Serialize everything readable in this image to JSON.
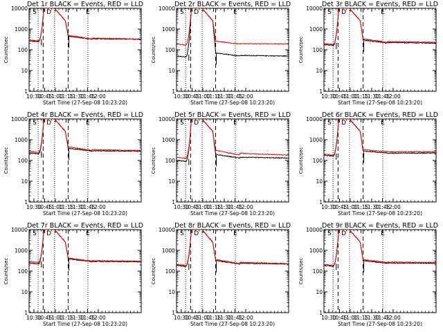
{
  "chart_data": {
    "type": "line",
    "y_scale": "log",
    "ylim": [
      1,
      10000
    ],
    "y_ticks": [
      1,
      10,
      100,
      1000,
      10000
    ],
    "y_tick_labels": [
      "1",
      "10",
      "100",
      "1000",
      "10000"
    ],
    "ylabel": "Counts/sec",
    "xlabel": "Start Time (27-Sep-08 10:23:20)",
    "xlim_minutes": [
      23.3,
      180
    ],
    "x_ticks_minutes": [
      30,
      45,
      60,
      75,
      90,
      105,
      120
    ],
    "x_tick_labels": [
      "10:30",
      "10:45",
      "11:00",
      "11:15",
      "11:30",
      "11:45",
      "12:00"
    ],
    "dotted_lines_minutes": [
      36,
      59,
      105.5
    ],
    "dashed_lines_minutes": [
      43,
      78
    ],
    "markers": [
      {
        "label": "S",
        "x_minutes": 31
      },
      {
        "label": "D",
        "x_minutes": 51
      },
      {
        "label": "E",
        "x_minutes": 105.5
      }
    ],
    "series_colors": {
      "events": "#000000",
      "lld": "#ff0000"
    },
    "panels": [
      {
        "title": "Det 1r BLACK = Events, RED = LLD",
        "base_events": 270,
        "base_lld": 300,
        "post_events": 350,
        "post_lld": 380,
        "end_events": 320,
        "end_lld": 330
      },
      {
        "title": "Det 2r BLACK = Events, RED = LLD",
        "base_events": 50,
        "base_lld": 190,
        "post_events": 55,
        "post_lld": 200,
        "end_events": 50,
        "end_lld": 190
      },
      {
        "title": "Det 3r BLACK = Events, RED = LLD",
        "base_events": 180,
        "base_lld": 200,
        "post_events": 230,
        "post_lld": 260,
        "end_events": 210,
        "end_lld": 230
      },
      {
        "title": "Det 4r BLACK = Events, RED = LLD",
        "base_events": 230,
        "base_lld": 270,
        "post_events": 300,
        "post_lld": 350,
        "end_events": 280,
        "end_lld": 300
      },
      {
        "title": "Det 5r BLACK = Events, RED = LLD",
        "base_events": 100,
        "base_lld": 140,
        "post_events": 150,
        "post_lld": 240,
        "end_events": 130,
        "end_lld": 180
      },
      {
        "title": "Det 6r BLACK = Events, RED = LLD",
        "base_events": 180,
        "base_lld": 200,
        "post_events": 220,
        "post_lld": 260,
        "end_events": 230,
        "end_lld": 260
      },
      {
        "title": "Det 7r BLACK = Events, RED = LLD",
        "base_events": 250,
        "base_lld": 290,
        "post_events": 300,
        "post_lld": 330,
        "end_events": 280,
        "end_lld": 300
      },
      {
        "title": "Det 8r BLACK = Events, RED = LLD",
        "base_events": 190,
        "base_lld": 210,
        "post_events": 250,
        "post_lld": 280,
        "end_events": 220,
        "end_lld": 230
      },
      {
        "title": "Det 9r BLACK = Events, RED = LLD",
        "base_events": 190,
        "base_lld": 210,
        "post_events": 250,
        "post_lld": 280,
        "end_events": 240,
        "end_lld": 260
      }
    ]
  }
}
